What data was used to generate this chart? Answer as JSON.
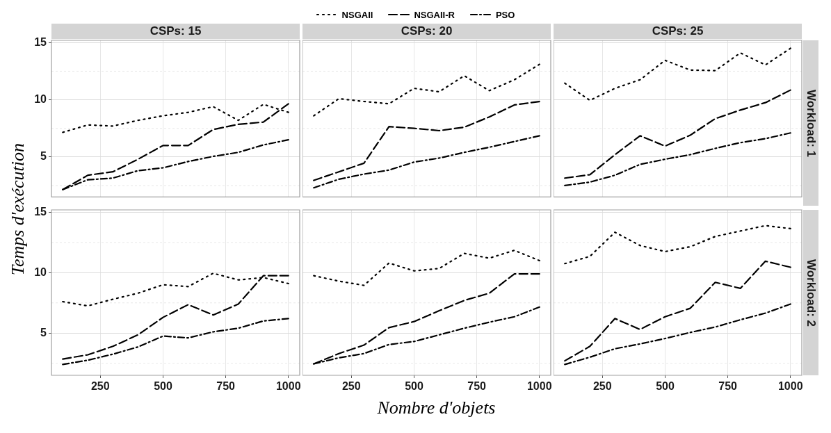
{
  "chart_data": [
    {
      "type": "line",
      "title": "CSPs: 15",
      "ylabel": "Temps d'exécution",
      "legend": "top",
      "tick_labels": "y",
      "grid": true,
      "x": [
        100,
        200,
        300,
        400,
        500,
        600,
        700,
        800,
        900,
        1000
      ],
      "xlim": [
        55,
        1045
      ],
      "xticks": [
        250,
        500,
        750,
        1000
      ],
      "ylim": [
        1.5,
        15.2
      ],
      "yticks": [
        5,
        10,
        15
      ],
      "series": [
        {
          "name": "NSGAII",
          "color": "#000000",
          "line_style": "dotted",
          "values": [
            7.15,
            7.8,
            7.7,
            8.2,
            8.6,
            8.9,
            9.4,
            8.2,
            9.6,
            8.9
          ]
        },
        {
          "name": "NSGAII-R",
          "color": "#000000",
          "line_style": "dashed",
          "values": [
            2.15,
            3.4,
            3.7,
            4.8,
            6.0,
            6.0,
            7.4,
            7.85,
            8.05,
            9.65
          ]
        },
        {
          "name": "PSO",
          "color": "#000000",
          "line_style": "dashdot",
          "values": [
            2.15,
            3.0,
            3.15,
            3.8,
            4.05,
            4.6,
            5.05,
            5.4,
            6.05,
            6.5
          ]
        }
      ]
    },
    {
      "type": "line",
      "title": "CSPs: 20",
      "tick_labels": false,
      "grid": true,
      "x": [
        100,
        200,
        300,
        400,
        500,
        600,
        700,
        800,
        900,
        1000
      ],
      "xlim": [
        55,
        1045
      ],
      "xticks": [
        250,
        500,
        750,
        1000
      ],
      "ylim": [
        1.5,
        15.2
      ],
      "yticks": [
        5,
        10,
        15
      ],
      "series": [
        {
          "name": "NSGAII",
          "color": "#000000",
          "line_style": "dotted",
          "values": [
            8.6,
            10.1,
            9.85,
            9.65,
            11.0,
            10.7,
            12.1,
            10.8,
            11.75,
            13.1
          ]
        },
        {
          "name": "NSGAII-R",
          "color": "#000000",
          "line_style": "dashed",
          "values": [
            2.95,
            3.7,
            4.45,
            7.65,
            7.5,
            7.3,
            7.6,
            8.5,
            9.55,
            9.85
          ]
        },
        {
          "name": "PSO",
          "color": "#000000",
          "line_style": "dashdot",
          "values": [
            2.3,
            3.05,
            3.5,
            3.85,
            4.55,
            4.9,
            5.4,
            5.85,
            6.35,
            6.85
          ]
        }
      ]
    },
    {
      "type": "line",
      "title": "CSPs: 25",
      "annotations": [
        "Workload: 1"
      ],
      "tick_labels": false,
      "grid": true,
      "x": [
        100,
        200,
        300,
        400,
        500,
        600,
        700,
        800,
        900,
        1000
      ],
      "xlim": [
        55,
        1045
      ],
      "xticks": [
        250,
        500,
        750,
        1000
      ],
      "ylim": [
        1.5,
        15.2
      ],
      "yticks": [
        5,
        10,
        15
      ],
      "series": [
        {
          "name": "NSGAII",
          "color": "#000000",
          "line_style": "dotted",
          "values": [
            11.45,
            9.95,
            11.0,
            11.75,
            13.45,
            12.6,
            12.55,
            14.1,
            13.05,
            14.5
          ]
        },
        {
          "name": "NSGAII-R",
          "color": "#000000",
          "line_style": "dashed",
          "values": [
            3.15,
            3.45,
            5.2,
            6.85,
            5.95,
            6.9,
            8.35,
            9.1,
            9.75,
            10.85
          ]
        },
        {
          "name": "PSO",
          "color": "#000000",
          "line_style": "dashdot",
          "values": [
            2.5,
            2.8,
            3.4,
            4.35,
            4.8,
            5.2,
            5.75,
            6.25,
            6.6,
            7.1
          ]
        }
      ]
    },
    {
      "type": "line",
      "grid": true,
      "x": [
        100,
        200,
        300,
        400,
        500,
        600,
        700,
        800,
        900,
        1000
      ],
      "xlim": [
        55,
        1045
      ],
      "xticks": [
        250,
        500,
        750,
        1000
      ],
      "ylim": [
        1.5,
        15.2
      ],
      "yticks": [
        5,
        10,
        15
      ],
      "series": [
        {
          "name": "NSGAII",
          "color": "#000000",
          "line_style": "dotted",
          "values": [
            7.6,
            7.25,
            7.8,
            8.3,
            9.0,
            8.85,
            9.95,
            9.4,
            9.6,
            9.1
          ]
        },
        {
          "name": "NSGAII-R",
          "color": "#000000",
          "line_style": "dashed",
          "values": [
            2.85,
            3.2,
            3.9,
            4.85,
            6.3,
            7.35,
            6.5,
            7.4,
            9.75,
            9.75
          ]
        },
        {
          "name": "PSO",
          "color": "#000000",
          "line_style": "dashdot",
          "values": [
            2.4,
            2.75,
            3.25,
            3.85,
            4.75,
            4.6,
            5.1,
            5.4,
            6.0,
            6.2
          ]
        }
      ]
    },
    {
      "type": "line",
      "xlabel": "Nombre d'objets",
      "tick_labels": "x",
      "grid": true,
      "x": [
        100,
        200,
        300,
        400,
        500,
        600,
        700,
        800,
        900,
        1000
      ],
      "xlim": [
        55,
        1045
      ],
      "xticks": [
        250,
        500,
        750,
        1000
      ],
      "ylim": [
        1.5,
        15.2
      ],
      "yticks": [
        5,
        10,
        15
      ],
      "series": [
        {
          "name": "NSGAII",
          "color": "#000000",
          "line_style": "dotted",
          "values": [
            9.75,
            9.3,
            8.95,
            10.8,
            10.15,
            10.35,
            11.6,
            11.2,
            11.85,
            11.0
          ]
        },
        {
          "name": "NSGAII-R",
          "color": "#000000",
          "line_style": "dashed",
          "values": [
            2.45,
            3.3,
            4.0,
            5.45,
            5.95,
            6.85,
            7.7,
            8.3,
            9.9,
            9.9
          ]
        },
        {
          "name": "PSO",
          "color": "#000000",
          "line_style": "dashdot",
          "values": [
            2.45,
            2.95,
            3.3,
            4.05,
            4.3,
            4.85,
            5.4,
            5.9,
            6.35,
            7.15
          ]
        }
      ]
    },
    {
      "type": "line",
      "annotations": [
        "Workload: 2"
      ],
      "tick_labels": "x",
      "grid": true,
      "x": [
        100,
        200,
        300,
        400,
        500,
        600,
        700,
        800,
        900,
        1000
      ],
      "xlim": [
        55,
        1045
      ],
      "xticks": [
        250,
        500,
        750,
        1000
      ],
      "ylim": [
        1.5,
        15.2
      ],
      "yticks": [
        5,
        10,
        15
      ],
      "series": [
        {
          "name": "NSGAII",
          "color": "#000000",
          "line_style": "dotted",
          "values": [
            10.75,
            11.35,
            13.35,
            12.25,
            11.75,
            12.15,
            13.0,
            13.45,
            13.9,
            13.65
          ]
        },
        {
          "name": "NSGAII-R",
          "color": "#000000",
          "line_style": "dashed",
          "values": [
            2.7,
            3.9,
            6.2,
            5.3,
            6.35,
            7.05,
            9.2,
            8.7,
            10.95,
            10.45
          ]
        },
        {
          "name": "PSO",
          "color": "#000000",
          "line_style": "dashdot",
          "values": [
            2.4,
            3.0,
            3.7,
            4.1,
            4.55,
            5.05,
            5.5,
            6.1,
            6.65,
            7.4
          ]
        }
      ]
    }
  ]
}
